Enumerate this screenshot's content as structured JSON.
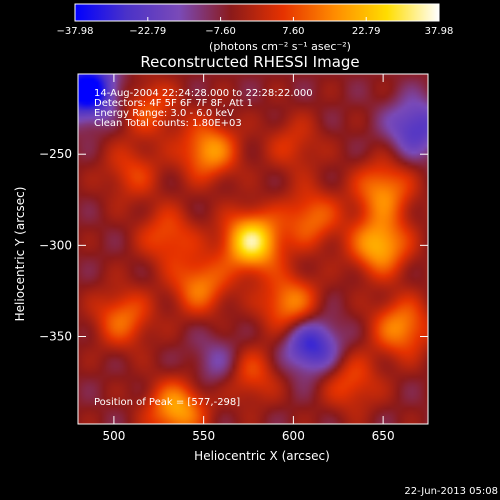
{
  "chart_data": {
    "type": "heatmap",
    "title": "Reconstructed RHESSI Image",
    "xlabel": "Heliocentric X (arcsec)",
    "ylabel": "Heliocentric Y (arcsec)",
    "xlim": [
      480,
      675
    ],
    "ylim": [
      -398,
      -206
    ],
    "xticks": [
      500,
      550,
      600,
      650
    ],
    "yticks": [
      -250,
      -300,
      -350
    ],
    "colorbar": {
      "min": -37.98,
      "max": 37.98,
      "ticks": [
        -37.98,
        -22.79,
        -7.6,
        7.6,
        22.79,
        37.98
      ],
      "tick_labels": [
        "−37.98",
        "−22.79",
        "−7.60",
        "7.60",
        "22.79",
        "37.98"
      ],
      "colormap": [
        "#0000ff",
        "#4b32c8",
        "#7a4ab8",
        "#8b1a1a",
        "#e63200",
        "#ff8c00",
        "#ffdd00",
        "#ffffff"
      ],
      "units": "(photons cm⁻² s⁻¹ asec⁻²)"
    },
    "annotations": [
      "14-Aug-2004 22:24:28.000 to 22:28:22.000",
      "Detectors: 4F 5F 6F 7F 8F, Att 1",
      "Energy Range: 3.0 - 6.0 keV",
      "Clean     Total counts: 1.80E+03"
    ],
    "peak_label": "Position of Peak = [577,-298]",
    "peak": [
      577,
      -298
    ],
    "sources": [
      {
        "x": 577,
        "y": -298,
        "value": 37.98
      },
      {
        "x": 648,
        "y": -300,
        "value": 28
      },
      {
        "x": 650,
        "y": -270,
        "value": 22
      },
      {
        "x": 553,
        "y": -248,
        "value": 24
      },
      {
        "x": 535,
        "y": -390,
        "value": 26
      },
      {
        "x": 598,
        "y": -332,
        "value": 22
      },
      {
        "x": 548,
        "y": -322,
        "value": 20
      },
      {
        "x": 505,
        "y": -340,
        "value": 18
      },
      {
        "x": 610,
        "y": -285,
        "value": 18
      },
      {
        "x": 530,
        "y": -295,
        "value": 15
      },
      {
        "x": 510,
        "y": -260,
        "value": 12
      },
      {
        "x": 520,
        "y": -225,
        "value": 14
      },
      {
        "x": 575,
        "y": -370,
        "value": 16
      },
      {
        "x": 660,
        "y": -345,
        "value": 22
      },
      {
        "x": 632,
        "y": -375,
        "value": 14
      },
      {
        "x": 600,
        "y": -245,
        "value": 10
      }
    ],
    "negative_regions": [
      {
        "x": 485,
        "y": -215,
        "value": -38
      },
      {
        "x": 610,
        "y": -355,
        "value": -25
      },
      {
        "x": 668,
        "y": -235,
        "value": -20
      },
      {
        "x": 560,
        "y": -365,
        "value": -12
      }
    ]
  },
  "footer": {
    "timestamp": "22-Jun-2013 05:08"
  }
}
